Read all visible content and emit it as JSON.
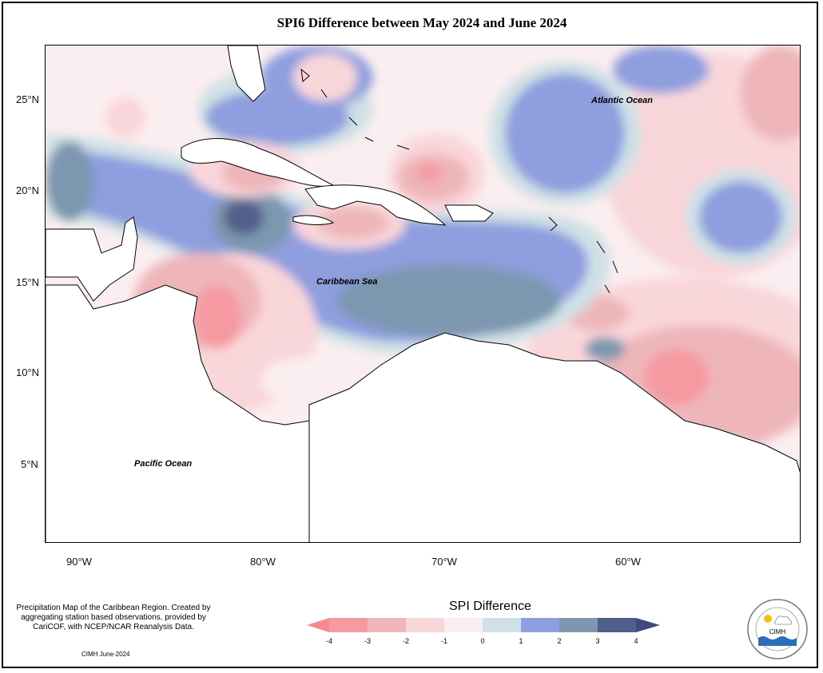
{
  "title": "SPI6 Difference between May 2024 and June 2024",
  "axes": {
    "lat_ticks": [
      "25°N",
      "20°N",
      "15°N",
      "10°N",
      "5°N"
    ],
    "lon_ticks": [
      "90°W",
      "80°W",
      "70°W",
      "60°W"
    ]
  },
  "labels": {
    "atlantic": "Atlantic Ocean",
    "caribbean": "Caribbean Sea",
    "pacific": "Pacific Ocean"
  },
  "footnote": "Precipitation Map of the Caribbean Region. Created by aggregating station based observations, provided by CariCOF, with NCEP/NCAR Reanalysis Data.",
  "credit": "CIMH June-2024",
  "legend": {
    "title": "SPI Difference",
    "ticks": [
      "-4",
      "-3",
      "-2",
      "-1",
      "0",
      "1",
      "2",
      "3",
      "4"
    ],
    "colors": [
      "#f59aa0",
      "#eeb6b9",
      "#f9d6da",
      "#fbeef0",
      "#cfe1e6",
      "#8e9ede",
      "#7d97b0",
      "#525e8a"
    ],
    "arrow_low": "#f58890",
    "arrow_high": "#3e4a7e"
  },
  "logo": {
    "text": "CIMH",
    "ring_text": "Caribbean Institute for Meteorology and Hydrology"
  },
  "colors": {
    "land": "#ffffff",
    "coast": "#000000"
  }
}
